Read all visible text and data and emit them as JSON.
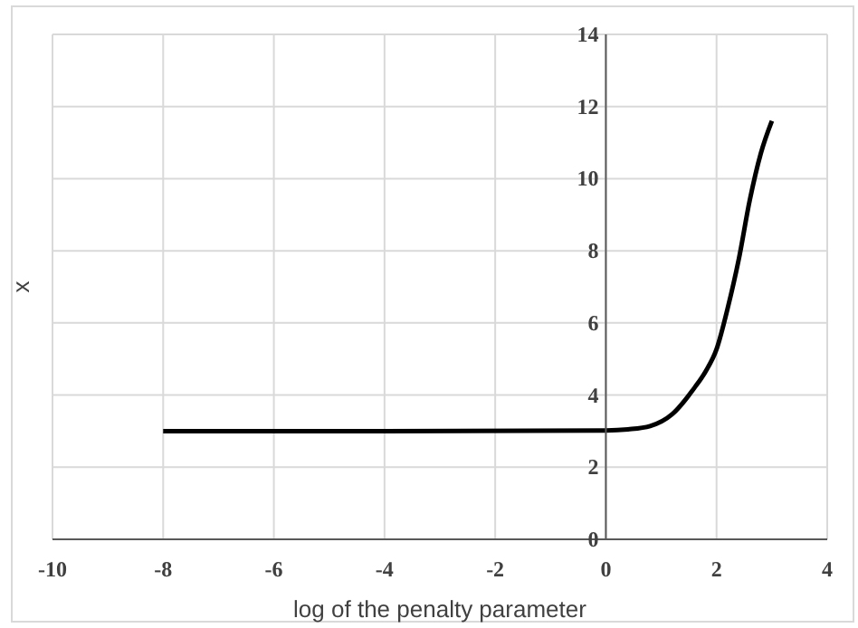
{
  "chart_data": {
    "type": "line",
    "xlabel": "log of the penalty parameter",
    "ylabel": "x",
    "x": [
      -8,
      -4,
      0,
      0.4,
      0.8,
      1.2,
      1.6,
      1.8,
      2,
      2.2,
      2.4,
      2.6,
      2.8,
      3
    ],
    "series": [
      {
        "color": "#000000",
        "values": [
          3,
          3,
          3.02,
          3.05,
          3.14,
          3.47,
          4.2,
          4.65,
          5.27,
          6.4,
          7.75,
          9.4,
          10.7,
          11.6
        ]
      }
    ],
    "xlim": [
      -10,
      4
    ],
    "xticks": [
      -10,
      -8,
      -6,
      -4,
      -2,
      0,
      2,
      4
    ],
    "ylim": [
      0,
      14
    ],
    "yticks": [
      0,
      2,
      4,
      6,
      8,
      10,
      12,
      14
    ],
    "grid": true,
    "legend": false,
    "marker": "none",
    "line_style": "solid"
  }
}
